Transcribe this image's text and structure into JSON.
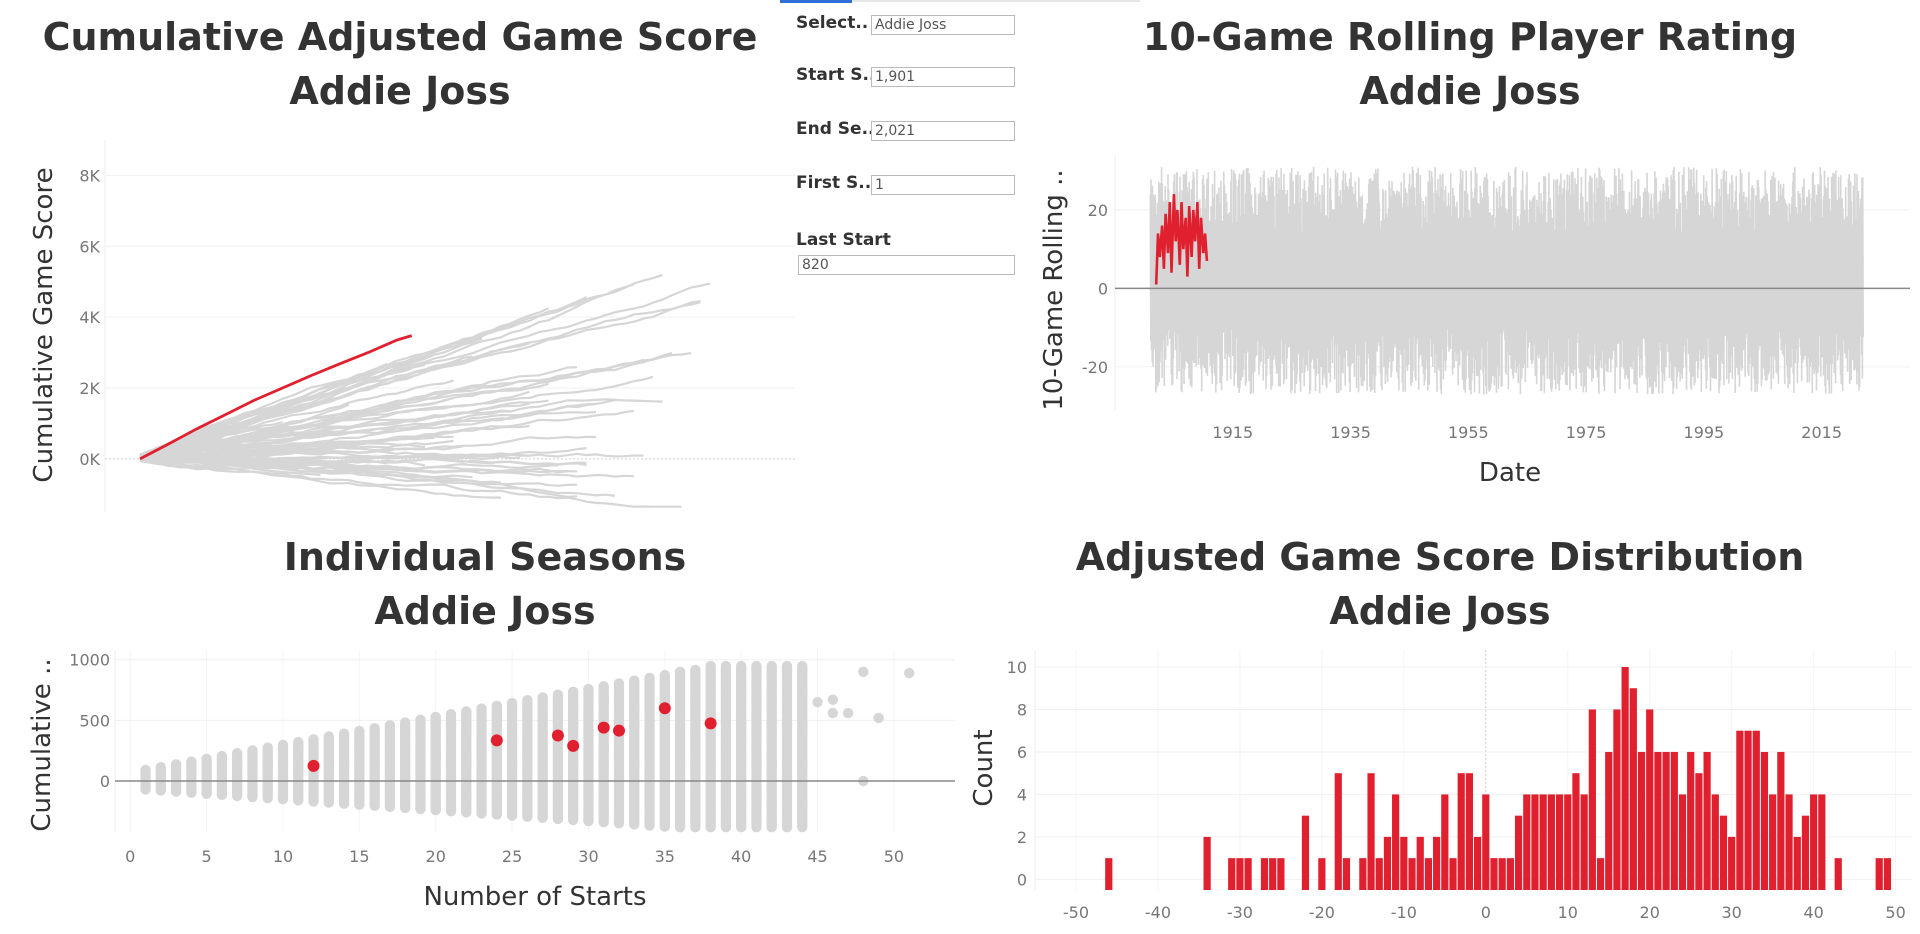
{
  "player": "Addie Joss",
  "titles": {
    "cumulative": "Cumulative Adjusted Game Score",
    "rolling": "10-Game Rolling Player Rating",
    "seasons": "Individual Seasons",
    "distribution": "Adjusted Game Score Distribution"
  },
  "filters": [
    {
      "label": "Select..",
      "value": "Addie Joss"
    },
    {
      "label": "Start S..",
      "value": "1,901"
    },
    {
      "label": "End Se..",
      "value": "2,021"
    },
    {
      "label": "First S..",
      "value": "1"
    },
    {
      "label": "Last Start",
      "value": "820"
    }
  ],
  "colors": {
    "highlight": "#e0202e",
    "background_series": "#d6d6d6",
    "zero_line": "#888888"
  },
  "chart_data": [
    {
      "type": "line",
      "title": "Cumulative Adjusted Game Score",
      "ylabel": "Cumulative Game Score",
      "ylim": [
        -1500,
        9000
      ],
      "yticks": [
        0,
        2000,
        4000,
        6000,
        8000
      ],
      "ytick_labels": [
        "0K",
        "2K",
        "4K",
        "6K",
        "8K"
      ],
      "highlight_series": {
        "name": "Addie Joss",
        "x": [
          0,
          30,
          60,
          90,
          120,
          150,
          180,
          210,
          240,
          270,
          286
        ],
        "y": [
          0,
          420,
          850,
          1250,
          1650,
          2000,
          2350,
          2680,
          3000,
          3350,
          3480
        ]
      }
    },
    {
      "type": "line",
      "title": "10-Game Rolling Player Rating",
      "xlabel": "Date",
      "ylabel": "10-Game Rolling ..",
      "xlim": [
        1895,
        2030
      ],
      "ylim": [
        -31,
        34
      ],
      "xticks": [
        1915,
        1935,
        1955,
        1975,
        1995,
        2015
      ],
      "yticks": [
        -20,
        0,
        20
      ],
      "highlight_series": {
        "name": "Addie Joss",
        "x": [
          1902,
          1902.3,
          1902.6,
          1903,
          1903.3,
          1903.6,
          1904,
          1904.3,
          1904.6,
          1905,
          1905.3,
          1905.6,
          1906,
          1906.3,
          1906.6,
          1907,
          1907.3,
          1907.6,
          1908,
          1908.3,
          1908.6,
          1909,
          1909.3,
          1909.6,
          1910,
          1910.3,
          1910.6
        ],
        "y": [
          1,
          14,
          8,
          16,
          5,
          19,
          9,
          22,
          4,
          24,
          12,
          20,
          6,
          22,
          10,
          18,
          3,
          21,
          8,
          20,
          12,
          22,
          5,
          18,
          9,
          14,
          7
        ]
      }
    },
    {
      "type": "scatter",
      "title": "Individual Seasons",
      "xlabel": "Number of Starts",
      "ylabel": "Cumulative ..",
      "xlim": [
        -1,
        54
      ],
      "ylim": [
        -420,
        1080
      ],
      "xticks": [
        0,
        5,
        10,
        15,
        20,
        25,
        30,
        35,
        40,
        45,
        50
      ],
      "yticks": [
        0,
        500,
        1000
      ],
      "highlight_points": {
        "name": "Addie Joss",
        "x": [
          12,
          24,
          28,
          29,
          31,
          32,
          35,
          38
        ],
        "y": [
          125,
          335,
          375,
          290,
          440,
          415,
          600,
          475
        ]
      }
    },
    {
      "type": "bar",
      "title": "Adjusted Game Score Distribution",
      "ylabel": "Count",
      "xlim": [
        -55,
        52
      ],
      "ylim": [
        -0.5,
        10.8
      ],
      "xticks": [
        -50,
        -40,
        -30,
        -20,
        -10,
        0,
        10,
        20,
        30,
        40,
        50
      ],
      "yticks": [
        0,
        2,
        4,
        6,
        8,
        10
      ],
      "bins": {
        "x": [
          -46,
          -34,
          -31,
          -30,
          -29,
          -27,
          -26,
          -25,
          -22,
          -20,
          -18,
          -17,
          -15,
          -14,
          -13,
          -12,
          -11,
          -10,
          -9,
          -8,
          -7,
          -6,
          -5,
          -4,
          -3,
          -2,
          -1,
          0,
          1,
          2,
          3,
          4,
          5,
          6,
          7,
          8,
          9,
          10,
          11,
          12,
          13,
          14,
          15,
          16,
          17,
          18,
          19,
          20,
          21,
          22,
          23,
          24,
          25,
          26,
          27,
          28,
          29,
          30,
          31,
          32,
          33,
          34,
          35,
          36,
          37,
          38,
          39,
          40,
          41,
          43,
          48,
          49
        ],
        "count": [
          1,
          2,
          1,
          1,
          1,
          1,
          1,
          1,
          3,
          1,
          5,
          1,
          1,
          5,
          1,
          2,
          4,
          2,
          1,
          2,
          1,
          2,
          4,
          1,
          5,
          5,
          2,
          4,
          1,
          1,
          1,
          3,
          4,
          4,
          4,
          4,
          4,
          4,
          5,
          4,
          8,
          1,
          6,
          8,
          10,
          9,
          6,
          8,
          6,
          6,
          6,
          4,
          6,
          5,
          6,
          4,
          3,
          2,
          7,
          7,
          7,
          6,
          4,
          6,
          4,
          2,
          3,
          4,
          4,
          1,
          1,
          1
        ]
      }
    }
  ]
}
